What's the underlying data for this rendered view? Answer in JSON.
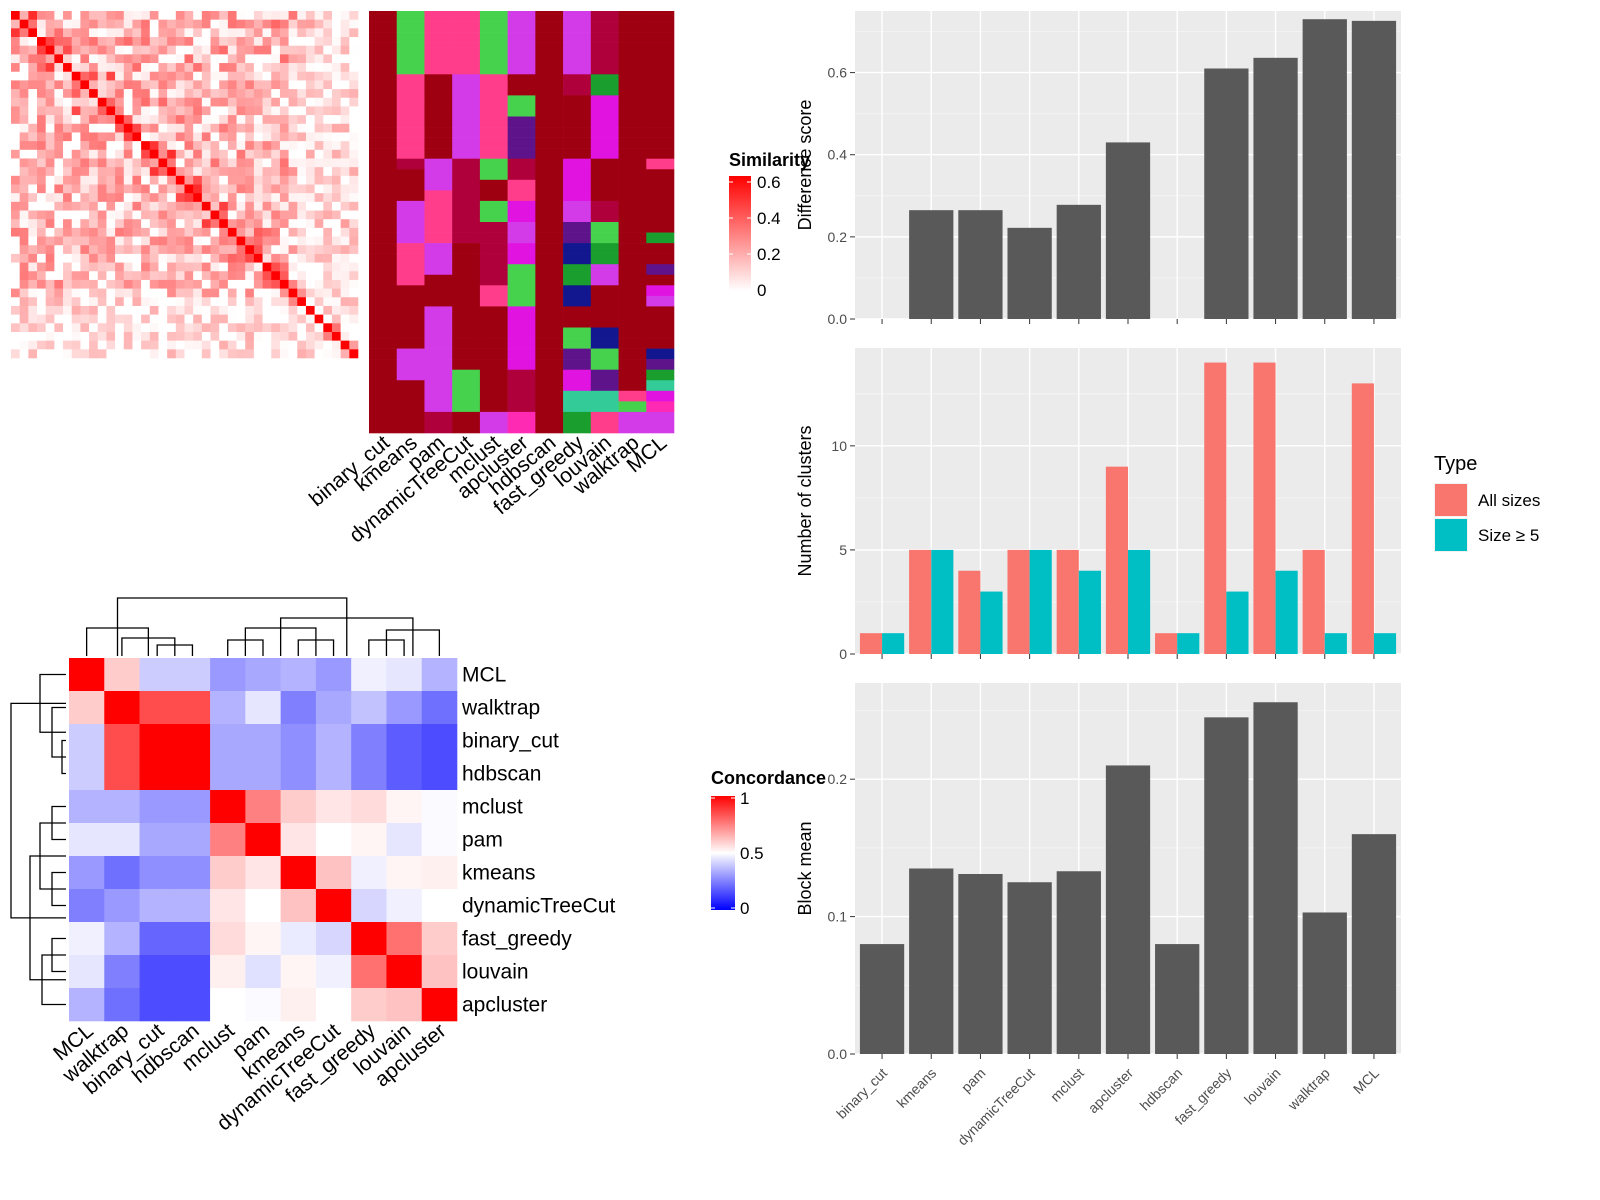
{
  "methods_axis": [
    "binary_cut",
    "kmeans",
    "pam",
    "dynamicTreeCut",
    "mclust",
    "apcluster",
    "hdbscan",
    "fast_greedy",
    "louvain",
    "walktrap",
    "MCL"
  ],
  "membership_panel": {
    "columns": [
      "binary_cut",
      "kmeans",
      "pam",
      "dynamicTreeCut",
      "mclust",
      "apcluster",
      "hdbscan",
      "fast_greedy",
      "louvain",
      "walktrap",
      "MCL"
    ],
    "legend": {
      "title": "Similarity",
      "ticks": [
        "0",
        "0.2",
        "0.4",
        "0.6"
      ],
      "low_color": "#ffffff",
      "high_color": "#ff0000"
    }
  },
  "concordance_panel": {
    "methods": [
      "MCL",
      "walktrap",
      "binary_cut",
      "hdbscan",
      "mclust",
      "pam",
      "kmeans",
      "dynamicTreeCut",
      "fast_greedy",
      "louvain",
      "apcluster"
    ],
    "values": [
      [
        1.0,
        0.6,
        0.4,
        0.4,
        0.3,
        0.33,
        0.35,
        0.3,
        0.47,
        0.45,
        0.35
      ],
      [
        0.6,
        1.0,
        0.85,
        0.85,
        0.35,
        0.45,
        0.25,
        0.33,
        0.38,
        0.3,
        0.22
      ],
      [
        0.4,
        0.85,
        1.0,
        1.0,
        0.33,
        0.33,
        0.28,
        0.35,
        0.25,
        0.18,
        0.15
      ],
      [
        0.4,
        0.85,
        1.0,
        1.0,
        0.33,
        0.33,
        0.28,
        0.35,
        0.25,
        0.18,
        0.15
      ],
      [
        0.35,
        0.35,
        0.3,
        0.3,
        1.0,
        0.75,
        0.6,
        0.55,
        0.57,
        0.52,
        0.49
      ],
      [
        0.45,
        0.45,
        0.33,
        0.33,
        0.75,
        1.0,
        0.55,
        0.5,
        0.52,
        0.45,
        0.49
      ],
      [
        0.3,
        0.22,
        0.28,
        0.28,
        0.6,
        0.55,
        1.0,
        0.62,
        0.47,
        0.52,
        0.53
      ],
      [
        0.25,
        0.3,
        0.35,
        0.35,
        0.55,
        0.5,
        0.62,
        1.0,
        0.42,
        0.47,
        0.5
      ],
      [
        0.47,
        0.35,
        0.2,
        0.2,
        0.57,
        0.52,
        0.46,
        0.42,
        1.0,
        0.78,
        0.6
      ],
      [
        0.45,
        0.25,
        0.15,
        0.15,
        0.53,
        0.44,
        0.52,
        0.47,
        0.78,
        1.0,
        0.62
      ],
      [
        0.35,
        0.22,
        0.15,
        0.15,
        0.5,
        0.49,
        0.53,
        0.5,
        0.6,
        0.62,
        1.0
      ]
    ],
    "legend": {
      "title": "Concordance",
      "ticks": [
        "0",
        "0.5",
        "1"
      ],
      "low_color": "#0000ff",
      "mid_color": "#ffffff",
      "high_color": "#ff0000"
    }
  },
  "chart_data": [
    {
      "type": "bar",
      "categories": [
        "binary_cut",
        "kmeans",
        "pam",
        "dynamicTreeCut",
        "mclust",
        "apcluster",
        "hdbscan",
        "fast_greedy",
        "louvain",
        "walktrap",
        "MCL"
      ],
      "values": [
        0.0,
        0.265,
        0.265,
        0.222,
        0.278,
        0.43,
        0.0,
        0.61,
        0.636,
        0.73,
        0.726
      ],
      "title": "",
      "xlabel": "",
      "ylabel": "Difference score",
      "ylim": [
        0,
        0.75
      ],
      "yticks": [
        "0.0",
        "0.2",
        "0.4",
        "0.6"
      ],
      "grid": true,
      "bar_color": "#595959"
    },
    {
      "type": "bar",
      "categories": [
        "binary_cut",
        "kmeans",
        "pam",
        "dynamicTreeCut",
        "mclust",
        "apcluster",
        "hdbscan",
        "fast_greedy",
        "louvain",
        "walktrap",
        "MCL"
      ],
      "series": [
        {
          "name": "All sizes",
          "values": [
            1,
            5,
            4,
            5,
            5,
            9,
            1,
            14,
            14,
            5,
            13
          ],
          "color": "#f8766d"
        },
        {
          "name": "Size ≥ 5",
          "values": [
            1,
            5,
            3,
            5,
            4,
            5,
            1,
            3,
            4,
            1,
            1
          ],
          "color": "#00bfc4"
        }
      ],
      "title": "",
      "xlabel": "",
      "ylabel": "Number of clusters",
      "ylim": [
        0,
        14.7
      ],
      "yticks": [
        "0",
        "5",
        "10"
      ],
      "grid": true,
      "legend": {
        "title": "Type",
        "position": "right"
      }
    },
    {
      "type": "bar",
      "categories": [
        "binary_cut",
        "kmeans",
        "pam",
        "dynamicTreeCut",
        "mclust",
        "apcluster",
        "hdbscan",
        "fast_greedy",
        "louvain",
        "walktrap",
        "MCL"
      ],
      "values": [
        0.08,
        0.135,
        0.131,
        0.125,
        0.133,
        0.21,
        0.08,
        0.245,
        0.256,
        0.103,
        0.16
      ],
      "title": "",
      "xlabel": "",
      "ylabel": "Block mean",
      "ylim": [
        0,
        0.27
      ],
      "yticks": [
        "0.0",
        "0.1",
        "0.2"
      ],
      "grid": true,
      "bar_color": "#595959"
    }
  ]
}
